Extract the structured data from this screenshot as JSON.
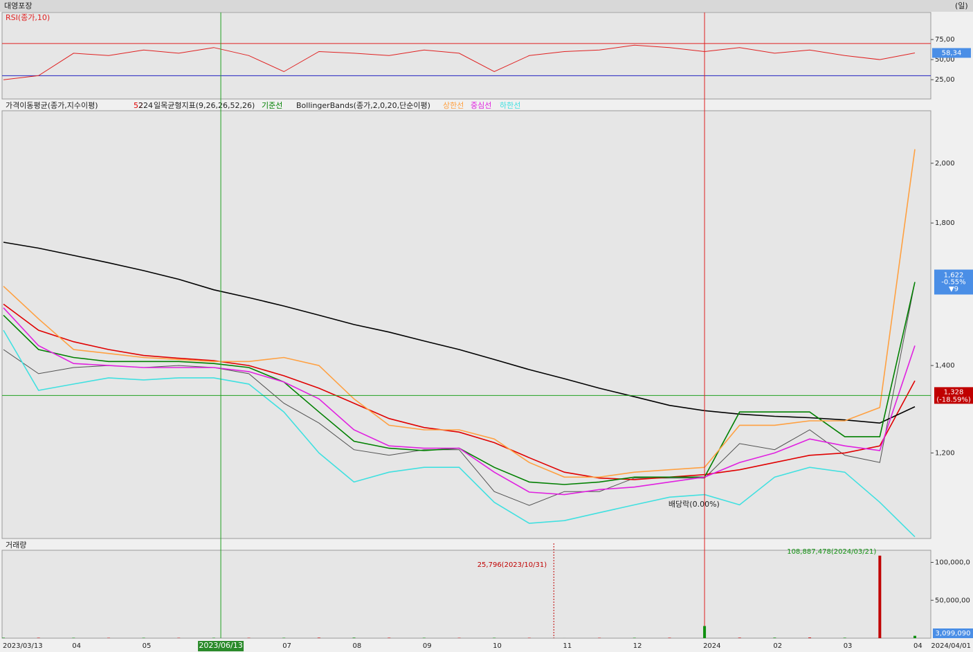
{
  "header": {
    "title": "대영포장",
    "period": "(일)"
  },
  "chart_data": [
    {
      "type": "line",
      "title": "RSI(종가,10)",
      "color": "#e02020",
      "values": [
        25,
        30,
        58,
        55,
        62,
        58,
        65,
        55,
        35,
        60,
        58,
        55,
        62,
        58,
        35,
        55,
        60,
        62,
        68,
        65,
        60,
        65,
        58,
        62,
        55,
        50,
        58.34
      ],
      "value_labels": {
        "26": "58,34"
      },
      "hlines": [
        {
          "value": 70,
          "color": "#e02020"
        },
        {
          "value": 30,
          "color": "#2020c0"
        }
      ],
      "ylim": [
        1,
        107
      ],
      "yticks": [
        {
          "value": 75,
          "label": "75,00"
        },
        {
          "value": 50,
          "label": "50,00"
        },
        {
          "value": 25,
          "label": "25,00"
        }
      ]
    },
    {
      "type": "line",
      "log_scale": true,
      "indicators": [
        "가격이동평균(종가,지수이평)",
        "일목균형지표(9,26,26,52,26)",
        "BollingerBands(종가,2,0,20,단순이평)"
      ],
      "series": [
        {
          "color": "#505050",
          "values": [
            1440,
            1380,
            1395,
            1400,
            1395,
            1400,
            1395,
            1380,
            1310,
            1265,
            1207,
            1195,
            1207,
            1207,
            1121,
            1094,
            1121,
            1121,
            1148,
            1148,
            1148,
            1220,
            1207,
            1250,
            1195,
            1180,
            1622
          ]
        },
        {
          "name": "52",
          "color": "#e00000",
          "values": [
            1560,
            1490,
            1460,
            1440,
            1425,
            1418,
            1412,
            1400,
            1375,
            1345,
            1310,
            1275,
            1255,
            1245,
            1222,
            1190,
            1160,
            1148,
            1145,
            1150,
            1155,
            1165,
            1180,
            1195,
            1200,
            1215,
            1363
          ]
        },
        {
          "name": "224",
          "color": "#000000",
          "values": [
            1740,
            1722,
            1700,
            1678,
            1655,
            1630,
            1600,
            1578,
            1555,
            1530,
            1505,
            1485,
            1462,
            1440,
            1415,
            1390,
            1368,
            1345,
            1325,
            1305,
            1293,
            1285,
            1280,
            1277,
            1272,
            1265,
            1302
          ]
        },
        {
          "name": "기준선",
          "color": "#008000",
          "values": [
            1530,
            1440,
            1420,
            1410,
            1410,
            1410,
            1405,
            1395,
            1360,
            1290,
            1225,
            1210,
            1205,
            1210,
            1170,
            1140,
            1135,
            1140,
            1150,
            1150,
            1150,
            1290,
            1290,
            1290,
            1235,
            1235,
            1622
          ]
        },
        {
          "name": "상한선",
          "color": "#ffa040",
          "values": [
            1610,
            1520,
            1440,
            1430,
            1420,
            1415,
            1410,
            1410,
            1420,
            1400,
            1320,
            1260,
            1250,
            1250,
            1230,
            1180,
            1150,
            1150,
            1160,
            1165,
            1170,
            1260,
            1260,
            1270,
            1270,
            1300,
            2050
          ]
        },
        {
          "name": "중심선",
          "color": "#e020e0",
          "values": [
            1550,
            1450,
            1405,
            1400,
            1395,
            1395,
            1395,
            1385,
            1360,
            1320,
            1250,
            1215,
            1210,
            1210,
            1160,
            1120,
            1115,
            1125,
            1130,
            1140,
            1150,
            1180,
            1200,
            1230,
            1215,
            1205,
            1450
          ]
        },
        {
          "name": "하한선",
          "color": "#40e0e0",
          "values": [
            1490,
            1340,
            1355,
            1370,
            1365,
            1370,
            1370,
            1355,
            1290,
            1200,
            1140,
            1160,
            1170,
            1170,
            1100,
            1060,
            1065,
            1080,
            1095,
            1110,
            1115,
            1095,
            1150,
            1170,
            1160,
            1100,
            1035
          ]
        }
      ],
      "ylim": [
        1032,
        2194
      ],
      "yticks": [
        {
          "value": 2000,
          "label": "2,000"
        },
        {
          "value": 1800,
          "label": "1,800"
        },
        {
          "value": 1400,
          "label": "1,400"
        },
        {
          "value": 1200,
          "label": "1,200"
        }
      ],
      "current": {
        "value": 1622,
        "label": "1,622",
        "change": "-0.55%",
        "diff": "▼9"
      },
      "cursor": {
        "value": 1328,
        "label": "1,328",
        "change": "(-18.59%)",
        "date": "2023/06/13"
      },
      "annotation": "배당락(0.00%)"
    },
    {
      "type": "bar",
      "title": "거래량",
      "color": "#109010",
      "categories": [
        "2023/03/13",
        null,
        "04",
        null,
        "05",
        null,
        null,
        null,
        "07",
        null,
        "08",
        null,
        "09",
        null,
        "10",
        null,
        "11",
        null,
        "12",
        null,
        "2024",
        null,
        "02",
        null,
        "03",
        null,
        "04"
      ],
      "end_label": "2024/04/01",
      "values": [
        600000,
        500000,
        500000,
        400000,
        500000,
        400000,
        500000,
        400000,
        500000,
        600000,
        700000,
        500000,
        500000,
        400000,
        500000,
        400000,
        25796,
        400000,
        500000,
        500000,
        16000000,
        600000,
        700000,
        800000,
        600000,
        108887478,
        3099090
      ],
      "annotations": [
        "108,887,478(2024/03/21)",
        "25,796(2023/10/31)"
      ],
      "last_label": "3,099,090",
      "ylim": [
        0,
        116000000
      ],
      "yticks": [
        {
          "value": 100000000,
          "label": "100,000,0"
        },
        {
          "value": 50000000,
          "label": "50,000,00"
        }
      ]
    }
  ]
}
